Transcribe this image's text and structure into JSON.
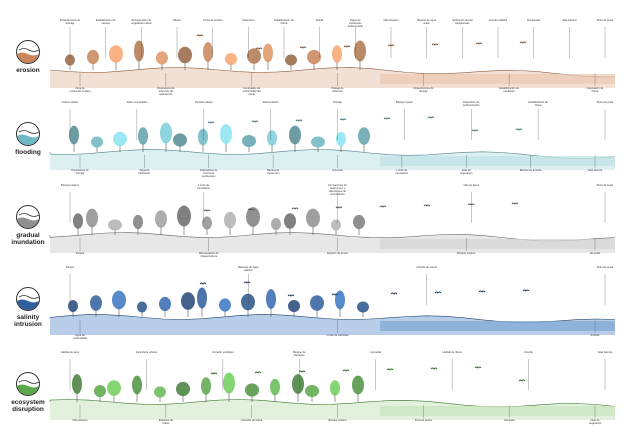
{
  "rows": [
    {
      "id": "erosion",
      "label": "erosion",
      "color": "#c9865a",
      "ground": "#e9c7b0",
      "top_labels": [
        "Infraestructura de drenaje",
        "Estabilización de cauces",
        "Recuperación de vegetación nativa",
        "Ribera",
        "Límite de erosión",
        "Sedimento",
        "Estabilización de ribera",
        "Muelle",
        "Dique de contención sedimentaria",
        "Vida silvestre",
        "Bosque de agua dulce",
        "Sedimento aluvial transportado",
        "Arrecife artificial",
        "Rompeolas",
        "Islas barrera",
        "Muro de costa"
      ],
      "bottom_labels": [
        "Zona de protección costera",
        "Dispositivos de retención de sedimentos",
        "Controlador de profundidad del canal",
        "Paisaje de retención",
        "Infraestructura de drenaje",
        "Estabilización de pendiente",
        "Vegetación de ribera"
      ]
    },
    {
      "id": "flooding",
      "label": "flooding",
      "color": "#6fb9c4",
      "ground": "#bfe2e6",
      "top_labels": [
        "Cultivo urbano",
        "Jardín comunitario",
        "Parcela urbana",
        "Reforestación",
        "Drenaje",
        "Bosque ripario",
        "Dispositivo de sedimentación",
        "Estabilización de ribera",
        "Muro de costa"
      ],
      "bottom_labels": [
        "Dispositivos de drenaje",
        "Zanja de infiltración",
        "Dispositivos de control de sedimentos",
        "Barrera de contención",
        "Humedal",
        "Límite de inundación",
        "Islas de vegetación",
        "Barrera de arrecife",
        "Islas barrera"
      ]
    },
    {
      "id": "gradual-inundation",
      "label": "gradual\ninundation",
      "color": "#8f8f8f",
      "ground": "#d4d4d4",
      "top_labels": [
        "Bosque costero",
        "Límite de inundación",
        "Formaciones de sedimentos y dispositivos de acumulación",
        "Vida de fauna",
        "Muro de costa"
      ],
      "bottom_labels": [
        "Parque",
        "Recuperación de infraestructura",
        "Espacio de pesca",
        "Bosque costero",
        "Humedal"
      ]
    },
    {
      "id": "salinity-intrusion",
      "label": "salinity\nintrusion",
      "color": "#2f5f9e",
      "ground": "#7ea6d6",
      "top_labels": [
        "Parque",
        "Barreras de agua salobre",
        "Arrecife de ostras",
        "Muro de costa"
      ],
      "bottom_labels": [
        "Agua de profundidad",
        "Límite de salinidad",
        "Arrecife"
      ]
    },
    {
      "id": "ecosystem-disruption",
      "label": "ecosystem\ndisruption",
      "color": "#5aa84a",
      "ground": "#c8e6bd",
      "top_labels": [
        "Hábitat de aves",
        "Agricultura urbana",
        "Corredor ecológico",
        "Bosque de transición",
        "Humedal",
        "Hábitat de ribera",
        "Arrecife",
        "Islas barrera"
      ],
      "bottom_labels": [
        "Vida silvestre",
        "Espacios de cultivo",
        "Corredor de fauna",
        "Bosque costero",
        "Zona de pesca",
        "Humedal",
        "Islas de vegetación"
      ]
    }
  ]
}
